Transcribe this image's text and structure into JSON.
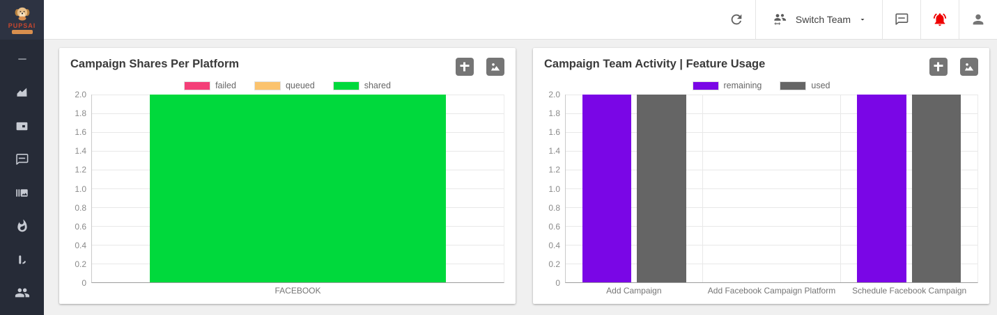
{
  "header": {
    "brand": "PUPSAI",
    "switch_team_label": "Switch Team",
    "icons": [
      "refresh-icon",
      "switch-team-icon",
      "chat-icon",
      "notifications-icon",
      "person-icon"
    ],
    "colors": {
      "notification_red": "#ee0000",
      "icon_gray": "#616161"
    }
  },
  "sidebar": {
    "items": [
      {
        "icon": "menu-dash-icon"
      },
      {
        "icon": "line-chart-icon"
      },
      {
        "icon": "card-icon"
      },
      {
        "icon": "chat-icon"
      },
      {
        "icon": "media-gallery-icon"
      },
      {
        "icon": "fire-icon"
      },
      {
        "icon": "bar-chart-icon"
      },
      {
        "icon": "team-icon"
      }
    ]
  },
  "card_actions": {
    "icons": [
      "table-icon",
      "image-icon"
    ]
  },
  "chart_data": [
    {
      "type": "bar",
      "title": "Campaign Shares Per Platform",
      "categories": [
        "FACEBOOK"
      ],
      "series": [
        {
          "name": "failed",
          "color": "#f43f78",
          "values": [
            0
          ]
        },
        {
          "name": "queued",
          "color": "#fbc36e",
          "values": [
            0
          ]
        },
        {
          "name": "shared",
          "color": "#00d93c",
          "values": [
            2
          ]
        }
      ],
      "ylim": [
        0,
        2
      ],
      "ytick_labels": [
        "2.0",
        "1.8",
        "1.6",
        "1.4",
        "1.2",
        "1.0",
        "0.8",
        "0.6",
        "0.4",
        "0.2",
        "0"
      ],
      "grid": true,
      "legend_position": "top",
      "stacked": true,
      "vgrid": false
    },
    {
      "type": "bar",
      "title": "Campaign Team Activity | Feature Usage",
      "categories": [
        "Add Campaign",
        "Add Facebook Campaign Platform",
        "Schedule Facebook Campaign"
      ],
      "series": [
        {
          "name": "remaining",
          "color": "#7a06e6",
          "values": [
            2,
            0,
            2
          ]
        },
        {
          "name": "used",
          "color": "#656565",
          "values": [
            2,
            0,
            2
          ]
        }
      ],
      "ylim": [
        0,
        2
      ],
      "ytick_labels": [
        "2.0",
        "1.8",
        "1.6",
        "1.4",
        "1.2",
        "1.0",
        "0.8",
        "0.6",
        "0.4",
        "0.2",
        "0"
      ],
      "grid": true,
      "legend_position": "top",
      "stacked": false,
      "vgrid": true
    }
  ]
}
